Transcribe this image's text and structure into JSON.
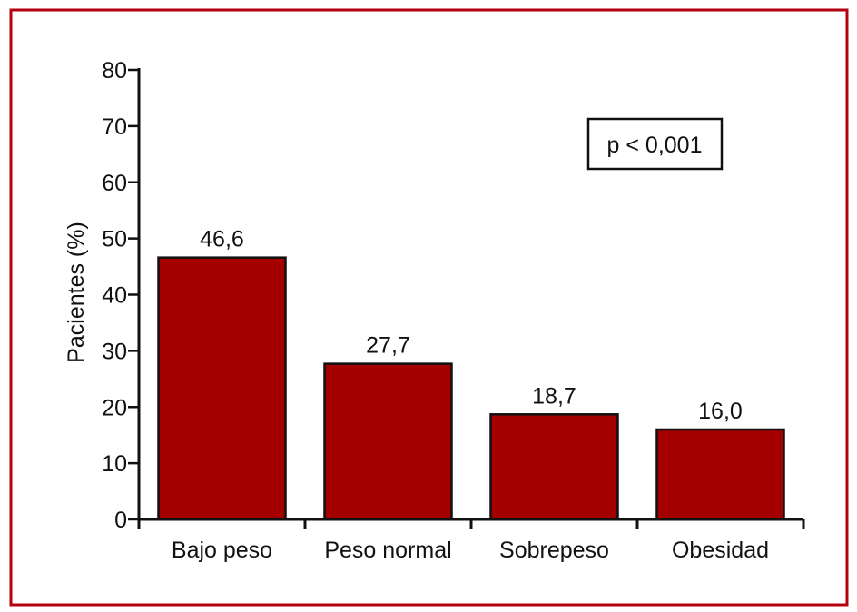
{
  "chart_data": {
    "type": "bar",
    "title": "",
    "xlabel": "",
    "ylabel": "Pacientes (%)",
    "ylim": [
      0,
      80
    ],
    "yticks": [
      0,
      10,
      20,
      30,
      40,
      50,
      60,
      70,
      80
    ],
    "categories": [
      "Bajo peso",
      "Peso normal",
      "Sobrepeso",
      "Obesidad"
    ],
    "values": [
      46.6,
      27.7,
      18.7,
      16.0
    ],
    "value_labels": [
      "46,6",
      "27,7",
      "18,7",
      "16,0"
    ],
    "annotation": "p < 0,001",
    "grid": false,
    "bar_color": "#a50000",
    "frame_color": "#b5000f"
  }
}
